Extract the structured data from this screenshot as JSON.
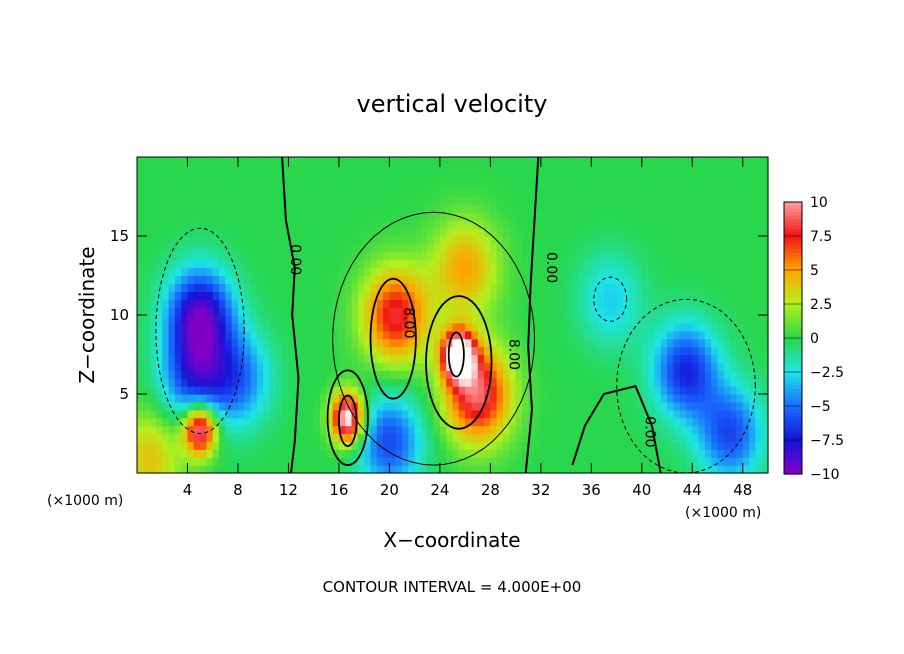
{
  "chart_data": {
    "type": "heatmap",
    "title": "vertical velocity",
    "xlabel": "X−coordinate",
    "ylabel": "Z−coordinate",
    "x_unit_left": "(×1000 m)",
    "x_unit_right": "(×1000 m)",
    "xlim": [
      0,
      50
    ],
    "ylim": [
      0,
      20
    ],
    "x_ticks": [
      4,
      8,
      12,
      16,
      20,
      24,
      28,
      32,
      36,
      40,
      44,
      48
    ],
    "x_tick_labels": [
      "4",
      "8",
      "12",
      "16",
      "20",
      "24",
      "28",
      "32",
      "36",
      "40",
      "44",
      "48"
    ],
    "y_ticks": [
      5,
      10,
      15
    ],
    "y_tick_labels": [
      "5",
      "10",
      "15"
    ],
    "colorbar": {
      "range": [
        -10,
        10
      ],
      "ticks": [
        10,
        7.5,
        5,
        2.5,
        0,
        -2.5,
        -5,
        -7.5,
        -10
      ],
      "tick_labels": [
        "10",
        "7.5",
        "5",
        "2.5",
        "0",
        "−2.5",
        "−5",
        "−7.5",
        "−10"
      ]
    },
    "contour_labels": [
      "0.00",
      "0.00",
      "0.00",
      "8.00",
      "8.00"
    ],
    "contour_interval_text": "CONTOUR INTERVAL = 4.000E+00",
    "features": [
      {
        "x": 16.7,
        "z": 3.5,
        "value": 12
      },
      {
        "x": 25.5,
        "z": 7.5,
        "value": 13
      },
      {
        "x": 20.5,
        "z": 10,
        "value": 8
      },
      {
        "x": 27,
        "z": 5,
        "value": 9
      },
      {
        "x": 26,
        "z": 13,
        "value": 5
      },
      {
        "x": 5,
        "z": 2.8,
        "value": 11
      },
      {
        "x": 5,
        "z": 10,
        "value": -9
      },
      {
        "x": 4.5,
        "z": 6,
        "value": -6
      },
      {
        "x": 8,
        "z": 6,
        "value": -5
      },
      {
        "x": 43.5,
        "z": 6.5,
        "value": -7
      },
      {
        "x": 47,
        "z": 2.5,
        "value": -6
      },
      {
        "x": 20,
        "z": 2,
        "value": -6
      },
      {
        "x": 37.5,
        "z": 11,
        "value": -3
      },
      {
        "x": 1,
        "z": 1,
        "value": 4
      }
    ]
  }
}
